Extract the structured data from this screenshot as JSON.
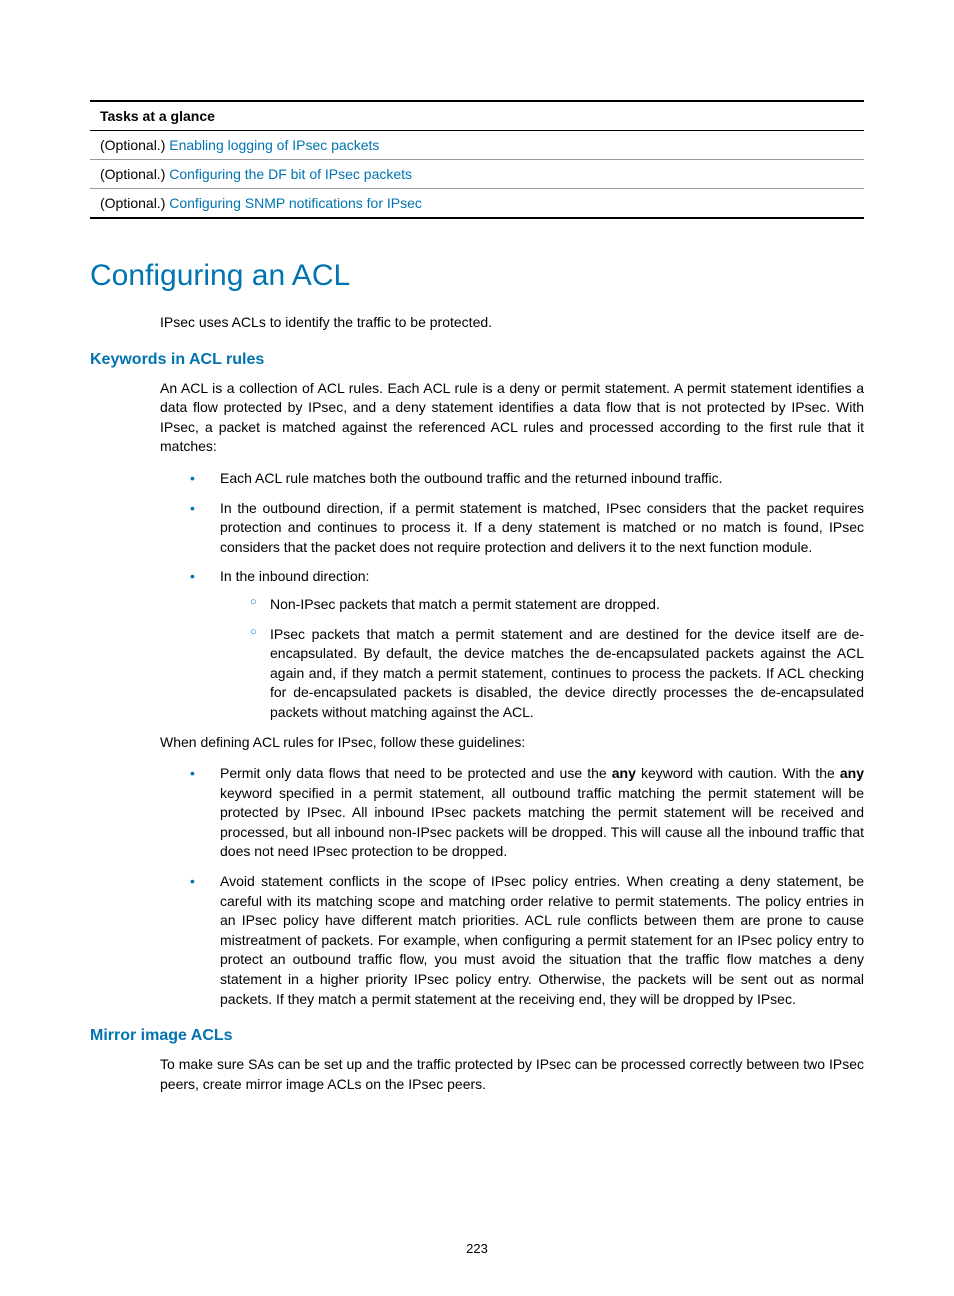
{
  "table": {
    "header": "Tasks at a glance",
    "rows": [
      {
        "prefix": "(Optional.) ",
        "link": "Enabling logging of IPsec packets"
      },
      {
        "prefix": "(Optional.) ",
        "link": "Configuring the DF bit of IPsec packets"
      },
      {
        "prefix": "(Optional.) ",
        "link": "Configuring SNMP notifications for IPsec"
      }
    ]
  },
  "h1": "Configuring an ACL",
  "intro": "IPsec uses ACLs to identify the traffic to be protected.",
  "sec1_title": "Keywords in ACL rules",
  "sec1_p1": "An ACL is a collection of ACL rules. Each ACL rule is a deny or permit statement. A permit statement identifies a data flow protected by IPsec, and a deny statement identifies a data flow that is not protected by IPsec. With IPsec, a packet is matched against the referenced ACL rules and processed according to the first rule that it matches:",
  "sec1_b1": "Each ACL rule matches both the outbound traffic and the returned inbound traffic.",
  "sec1_b2": "In the outbound direction, if a permit statement is matched, IPsec considers that the packet requires protection and continues to process it. If a deny statement is matched or no match is found, IPsec considers that the packet does not require protection and delivers it to the next function module.",
  "sec1_b3": "In the inbound direction:",
  "sec1_b3a": "Non-IPsec packets that match a permit statement are dropped.",
  "sec1_b3b": "IPsec packets that match a permit statement and are destined for the device itself are de-encapsulated. By default, the device matches the de-encapsulated packets against the ACL again and, if they match a permit statement, continues to process the packets. If ACL checking for de-encapsulated packets is disabled, the device directly processes the de-encapsulated packets without matching against the ACL.",
  "sec1_p2": "When defining ACL rules for IPsec, follow these guidelines:",
  "sec1_g1_pre": "Permit only data flows that need to be protected and use the ",
  "sec1_g1_kw1": "any",
  "sec1_g1_mid": " keyword with caution. With the ",
  "sec1_g1_kw2": "any",
  "sec1_g1_post": " keyword specified in a permit statement, all outbound traffic matching the permit statement will be protected by IPsec. All inbound IPsec packets matching the permit statement will be received and processed, but all inbound non-IPsec packets will be dropped. This will cause all the inbound traffic that does not need IPsec protection to be dropped.",
  "sec1_g2": "Avoid statement conflicts in the scope of IPsec policy entries. When creating a deny statement, be careful with its matching scope and matching order relative to permit statements. The policy entries in an IPsec policy have different match priorities. ACL rule conflicts between them are prone to cause mistreatment of packets. For example, when configuring a permit statement for an IPsec policy entry to protect an outbound traffic flow, you must avoid the situation that the traffic flow matches a deny statement in a higher priority IPsec policy entry. Otherwise, the packets will be sent out as normal packets. If they match a permit statement at the receiving end, they will be dropped by IPsec.",
  "sec2_title": "Mirror image ACLs",
  "sec2_p1": "To make sure SAs can be set up and the traffic protected by IPsec can be processed correctly between two IPsec peers, create mirror image ACLs on the IPsec peers.",
  "page_number": "223"
}
